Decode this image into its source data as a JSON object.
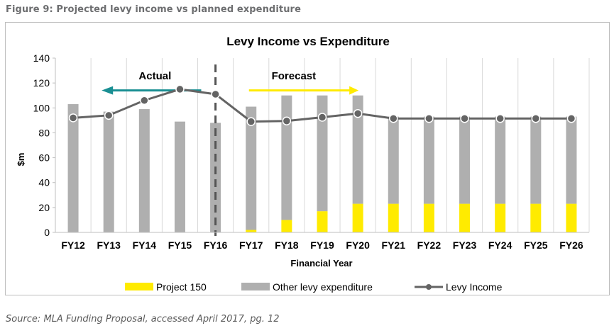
{
  "figure_caption": "Figure 9: Projected levy income vs planned expenditure",
  "source_note": "Source: MLA Funding Proposal, accessed April 2017, pg. 12",
  "chart_data": {
    "type": "bar",
    "stacked": true,
    "title": "Levy Income vs Expenditure",
    "xlabel": "Financial Year",
    "ylabel": "$m",
    "ylim": [
      0,
      140
    ],
    "yticks": [
      "0",
      "20",
      "40",
      "60",
      "80",
      "100",
      "120",
      "140"
    ],
    "grid": "vertical",
    "legend_position": "bottom",
    "categories": [
      "FY12",
      "FY13",
      "FY14",
      "FY15",
      "FY16",
      "FY17",
      "FY18",
      "FY19",
      "FY20",
      "FY21",
      "FY22",
      "FY23",
      "FY24",
      "FY25",
      "FY26"
    ],
    "series": [
      {
        "name": "Project 150",
        "kind": "bar",
        "color": "#ffeb00",
        "values": [
          0,
          0,
          0,
          0,
          0,
          2,
          10,
          17,
          23,
          23,
          23,
          23,
          23,
          23,
          23
        ]
      },
      {
        "name": "Other levy expenditure",
        "kind": "bar",
        "color": "#afafaf",
        "values": [
          103,
          97,
          99,
          89,
          88,
          99,
          100,
          93,
          87,
          70,
          70,
          70,
          70,
          70,
          70
        ]
      },
      {
        "name": "Levy Income",
        "kind": "line",
        "color": "#646464",
        "values": [
          92,
          94,
          106,
          115,
          111,
          89,
          89.5,
          92.5,
          95.5,
          91.5,
          91.5,
          91.5,
          91.5,
          91.5,
          91.5
        ]
      }
    ],
    "annotations": {
      "actual_label": "Actual",
      "forecast_label": "Forecast",
      "actual_color": "#1a8f93",
      "forecast_color": "#ffeb00",
      "divider_after": "FY16"
    }
  }
}
